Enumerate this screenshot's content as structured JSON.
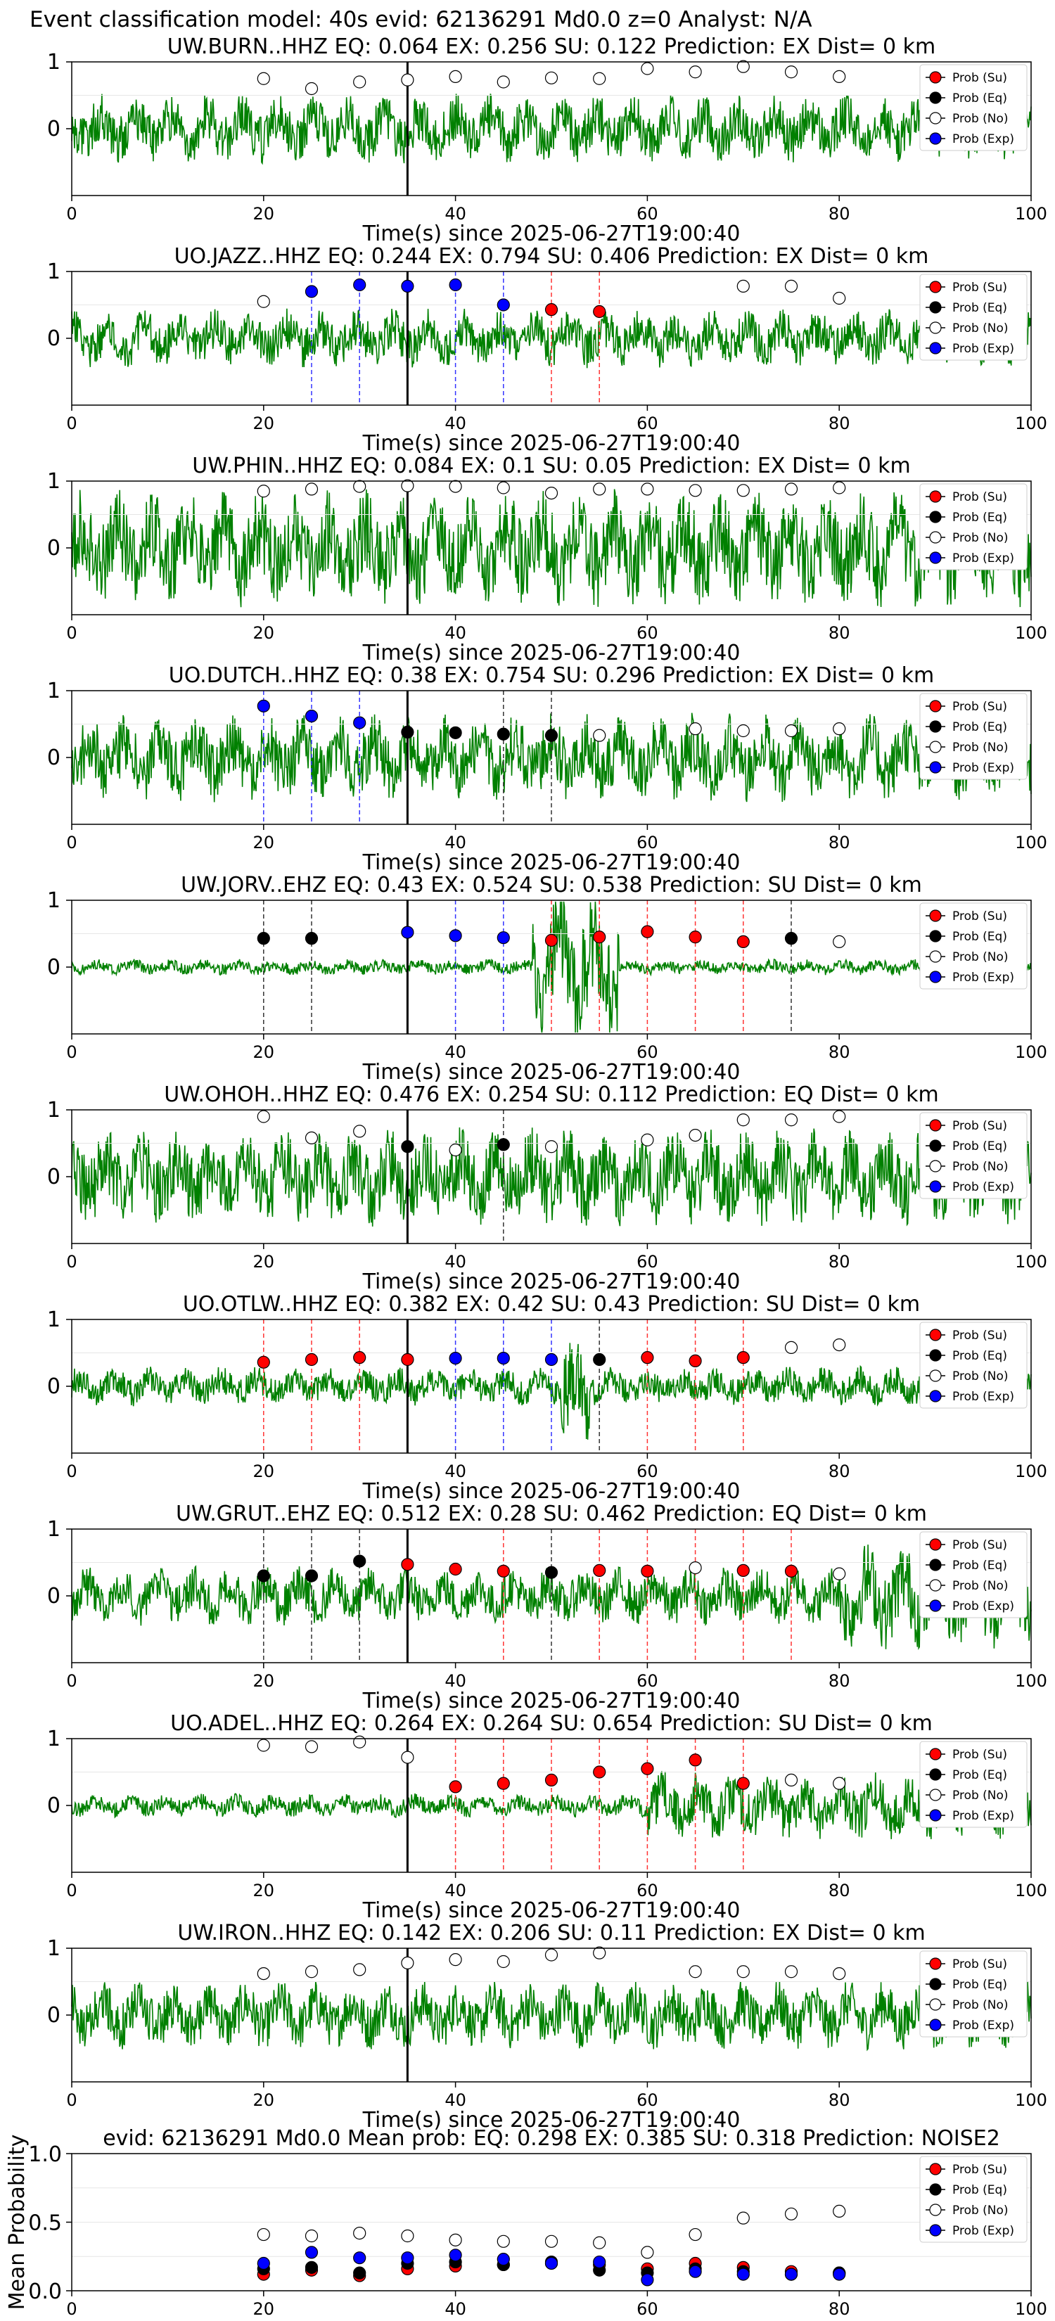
{
  "figure_title": "Event classification model: 40s evid: 62136291 Md0.0 z=0 Analyst: N/A",
  "legend_labels": [
    "Prob (Su)",
    "Prob (Eq)",
    "Prob (No)",
    "Prob (Exp)"
  ],
  "colors": {
    "su": "#ff0000",
    "eq": "#000000",
    "no": "#ffffff",
    "exp": "#0000ff",
    "waveform": "#008000"
  },
  "chart_data": [
    {
      "type": "line",
      "title": "UW.BURN..HHZ   EQ: 0.064  EX: 0.256  SU: 0.122   Prediction: EX    Dist= 0 km",
      "xlabel": "Time(s) since 2025-06-27T19:00:40",
      "xlim": [
        0,
        100
      ],
      "ylim": [
        -1,
        1
      ],
      "xticks": [
        "0",
        "20",
        "40",
        "60",
        "80",
        "100"
      ],
      "yticks": [
        "0",
        "1"
      ],
      "noise_amplitude": 0.35,
      "seed": 1,
      "points": [
        [
          20,
          "no",
          0.75
        ],
        [
          25,
          "no",
          0.6
        ],
        [
          30,
          "no",
          0.7
        ],
        [
          35,
          "no",
          0.73
        ],
        [
          40,
          "no",
          0.78
        ],
        [
          45,
          "no",
          0.7
        ],
        [
          50,
          "no",
          0.76
        ],
        [
          55,
          "no",
          0.75
        ],
        [
          60,
          "no",
          0.9
        ],
        [
          65,
          "no",
          0.85
        ],
        [
          70,
          "no",
          0.93
        ],
        [
          75,
          "no",
          0.85
        ],
        [
          80,
          "no",
          0.78
        ]
      ],
      "vlines": []
    },
    {
      "type": "line",
      "title": "UO.JAZZ..HHZ   EQ: 0.244  EX: 0.794  SU: 0.406   Prediction: EX    Dist= 0 km",
      "xlabel": "Time(s) since 2025-06-27T19:00:40",
      "xlim": [
        0,
        100
      ],
      "ylim": [
        -1,
        1
      ],
      "xticks": [
        "0",
        "20",
        "40",
        "60",
        "80",
        "100"
      ],
      "yticks": [
        "0",
        "1"
      ],
      "noise_amplitude": 0.3,
      "seed": 2,
      "points": [
        [
          20,
          "no",
          0.55
        ],
        [
          25,
          "exp",
          0.7
        ],
        [
          30,
          "exp",
          0.8
        ],
        [
          35,
          "exp",
          0.78
        ],
        [
          40,
          "exp",
          0.8
        ],
        [
          45,
          "exp",
          0.5
        ],
        [
          50,
          "su",
          0.43
        ],
        [
          55,
          "su",
          0.4
        ],
        [
          70,
          "no",
          0.78
        ],
        [
          75,
          "no",
          0.78
        ],
        [
          80,
          "no",
          0.6
        ]
      ],
      "vlines": [
        [
          25,
          "exp"
        ],
        [
          30,
          "exp"
        ],
        [
          40,
          "exp"
        ],
        [
          45,
          "exp"
        ],
        [
          50,
          "su"
        ],
        [
          55,
          "su"
        ]
      ]
    },
    {
      "type": "line",
      "title": "UW.PHIN..HHZ   EQ: 0.084  EX: 0.1  SU: 0.05   Prediction: EX    Dist= 0 km",
      "xlabel": "Time(s) since 2025-06-27T19:00:40",
      "xlim": [
        0,
        100
      ],
      "ylim": [
        -1,
        1
      ],
      "xticks": [
        "0",
        "20",
        "40",
        "60",
        "80",
        "100"
      ],
      "yticks": [
        "0",
        "1"
      ],
      "noise_amplitude": 0.6,
      "seed": 3,
      "points": [
        [
          20,
          "no",
          0.85
        ],
        [
          25,
          "no",
          0.88
        ],
        [
          30,
          "no",
          0.92
        ],
        [
          35,
          "no",
          0.93
        ],
        [
          40,
          "no",
          0.92
        ],
        [
          45,
          "no",
          0.9
        ],
        [
          50,
          "no",
          0.82
        ],
        [
          55,
          "no",
          0.88
        ],
        [
          60,
          "no",
          0.88
        ],
        [
          65,
          "no",
          0.86
        ],
        [
          70,
          "no",
          0.86
        ],
        [
          75,
          "no",
          0.88
        ],
        [
          80,
          "no",
          0.9
        ]
      ],
      "vlines": []
    },
    {
      "type": "line",
      "title": "UO.DUTCH..HHZ   EQ: 0.38  EX: 0.754  SU: 0.296   Prediction: EX    Dist= 0 km",
      "xlabel": "Time(s) since 2025-06-27T19:00:40",
      "xlim": [
        0,
        100
      ],
      "ylim": [
        -1,
        1
      ],
      "xticks": [
        "0",
        "20",
        "40",
        "60",
        "80",
        "100"
      ],
      "yticks": [
        "0",
        "1"
      ],
      "noise_amplitude": 0.45,
      "seed": 4,
      "points": [
        [
          20,
          "exp",
          0.77
        ],
        [
          25,
          "exp",
          0.62
        ],
        [
          30,
          "exp",
          0.52
        ],
        [
          35,
          "eq",
          0.38
        ],
        [
          40,
          "eq",
          0.37
        ],
        [
          45,
          "eq",
          0.35
        ],
        [
          50,
          "eq",
          0.33
        ],
        [
          55,
          "no",
          0.33
        ],
        [
          65,
          "no",
          0.43
        ],
        [
          70,
          "no",
          0.4
        ],
        [
          75,
          "no",
          0.4
        ],
        [
          80,
          "no",
          0.43
        ]
      ],
      "vlines": [
        [
          20,
          "exp"
        ],
        [
          25,
          "exp"
        ],
        [
          30,
          "exp"
        ],
        [
          45,
          "eq"
        ],
        [
          50,
          "eq"
        ]
      ]
    },
    {
      "type": "line",
      "title": "UW.JORV..EHZ   EQ: 0.43  EX: 0.524  SU: 0.538   Prediction: SU    Dist= 0 km",
      "xlabel": "Time(s) since 2025-06-27T19:00:40",
      "xlim": [
        0,
        100
      ],
      "ylim": [
        -1,
        1
      ],
      "xticks": [
        "0",
        "20",
        "40",
        "60",
        "80",
        "100"
      ],
      "yticks": [
        "0",
        "1"
      ],
      "noise_amplitude": 0.08,
      "seed": 5,
      "points": [
        [
          20,
          "eq",
          0.43
        ],
        [
          25,
          "eq",
          0.43
        ],
        [
          35,
          "exp",
          0.52
        ],
        [
          40,
          "exp",
          0.47
        ],
        [
          45,
          "exp",
          0.44
        ],
        [
          50,
          "su",
          0.4
        ],
        [
          55,
          "su",
          0.45
        ],
        [
          60,
          "su",
          0.53
        ],
        [
          65,
          "su",
          0.45
        ],
        [
          70,
          "su",
          0.38
        ],
        [
          75,
          "eq",
          0.43
        ],
        [
          80,
          "no",
          0.38
        ]
      ],
      "vlines": [
        [
          20,
          "eq"
        ],
        [
          25,
          "eq"
        ],
        [
          40,
          "exp"
        ],
        [
          45,
          "exp"
        ],
        [
          50,
          "su"
        ],
        [
          55,
          "su"
        ],
        [
          60,
          "su"
        ],
        [
          65,
          "su"
        ],
        [
          70,
          "su"
        ],
        [
          75,
          "eq"
        ]
      ]
    },
    {
      "type": "line",
      "title": "UW.OHOH..HHZ   EQ: 0.476  EX: 0.254  SU: 0.112   Prediction: EQ    Dist= 0 km",
      "xlabel": "Time(s) since 2025-06-27T19:00:40",
      "xlim": [
        0,
        100
      ],
      "ylim": [
        -1,
        1
      ],
      "xticks": [
        "0",
        "20",
        "40",
        "60",
        "80",
        "100"
      ],
      "yticks": [
        "0",
        "1"
      ],
      "noise_amplitude": 0.5,
      "seed": 6,
      "points": [
        [
          20,
          "no",
          0.9
        ],
        [
          25,
          "no",
          0.58
        ],
        [
          30,
          "no",
          0.68
        ],
        [
          35,
          "eq",
          0.45
        ],
        [
          40,
          "no",
          0.4
        ],
        [
          45,
          "eq",
          0.48
        ],
        [
          50,
          "no",
          0.45
        ],
        [
          60,
          "no",
          0.55
        ],
        [
          65,
          "no",
          0.62
        ],
        [
          70,
          "no",
          0.85
        ],
        [
          75,
          "no",
          0.85
        ],
        [
          80,
          "no",
          0.9
        ]
      ],
      "vlines": [
        [
          45,
          "eq"
        ]
      ]
    },
    {
      "type": "line",
      "title": "UO.OTLW..HHZ   EQ: 0.382  EX: 0.42  SU: 0.43   Prediction: SU    Dist= 0 km",
      "xlabel": "Time(s) since 2025-06-27T19:00:40",
      "xlim": [
        0,
        100
      ],
      "ylim": [
        -1,
        1
      ],
      "xticks": [
        "0",
        "20",
        "40",
        "60",
        "80",
        "100"
      ],
      "yticks": [
        "0",
        "1"
      ],
      "noise_amplitude": 0.2,
      "seed": 7,
      "points": [
        [
          20,
          "su",
          0.36
        ],
        [
          25,
          "su",
          0.4
        ],
        [
          30,
          "su",
          0.43
        ],
        [
          35,
          "su",
          0.4
        ],
        [
          40,
          "exp",
          0.42
        ],
        [
          45,
          "exp",
          0.42
        ],
        [
          50,
          "exp",
          0.4
        ],
        [
          55,
          "eq",
          0.4
        ],
        [
          60,
          "su",
          0.43
        ],
        [
          65,
          "su",
          0.38
        ],
        [
          70,
          "su",
          0.43
        ],
        [
          75,
          "no",
          0.58
        ],
        [
          80,
          "no",
          0.62
        ]
      ],
      "vlines": [
        [
          20,
          "su"
        ],
        [
          25,
          "su"
        ],
        [
          30,
          "su"
        ],
        [
          40,
          "exp"
        ],
        [
          45,
          "exp"
        ],
        [
          50,
          "exp"
        ],
        [
          55,
          "eq"
        ],
        [
          60,
          "su"
        ],
        [
          65,
          "su"
        ],
        [
          70,
          "su"
        ]
      ]
    },
    {
      "type": "line",
      "title": "UW.GRUT..EHZ   EQ: 0.512  EX: 0.28  SU: 0.462   Prediction: EQ    Dist= 0 km",
      "xlabel": "Time(s) since 2025-06-27T19:00:40",
      "xlim": [
        0,
        100
      ],
      "ylim": [
        -1,
        1
      ],
      "xticks": [
        "0",
        "20",
        "40",
        "60",
        "80",
        "100"
      ],
      "yticks": [
        "0",
        "1"
      ],
      "noise_amplitude": 0.3,
      "seed": 8,
      "points": [
        [
          20,
          "eq",
          0.3
        ],
        [
          25,
          "eq",
          0.3
        ],
        [
          30,
          "eq",
          0.52
        ],
        [
          35,
          "su",
          0.47
        ],
        [
          40,
          "su",
          0.4
        ],
        [
          45,
          "su",
          0.37
        ],
        [
          50,
          "eq",
          0.35
        ],
        [
          55,
          "su",
          0.38
        ],
        [
          60,
          "su",
          0.37
        ],
        [
          65,
          "no",
          0.42
        ],
        [
          70,
          "su",
          0.38
        ],
        [
          75,
          "su",
          0.37
        ],
        [
          80,
          "no",
          0.33
        ]
      ],
      "vlines": [
        [
          20,
          "eq"
        ],
        [
          25,
          "eq"
        ],
        [
          30,
          "eq"
        ],
        [
          45,
          "su"
        ],
        [
          50,
          "eq"
        ],
        [
          55,
          "su"
        ],
        [
          60,
          "su"
        ],
        [
          65,
          "su"
        ],
        [
          70,
          "su"
        ],
        [
          75,
          "su"
        ]
      ]
    },
    {
      "type": "line",
      "title": "UO.ADEL..HHZ   EQ: 0.264  EX: 0.264  SU: 0.654   Prediction: SU    Dist= 0 km",
      "xlabel": "Time(s) since 2025-06-27T19:00:40",
      "xlim": [
        0,
        100
      ],
      "ylim": [
        -1,
        1
      ],
      "xticks": [
        "0",
        "20",
        "40",
        "60",
        "80",
        "100"
      ],
      "yticks": [
        "0",
        "1"
      ],
      "noise_amplitude": 0.12,
      "seed": 9,
      "points": [
        [
          20,
          "no",
          0.9
        ],
        [
          25,
          "no",
          0.88
        ],
        [
          30,
          "no",
          0.95
        ],
        [
          35,
          "no",
          0.72
        ],
        [
          40,
          "su",
          0.28
        ],
        [
          45,
          "su",
          0.33
        ],
        [
          50,
          "su",
          0.38
        ],
        [
          55,
          "su",
          0.5
        ],
        [
          60,
          "su",
          0.55
        ],
        [
          65,
          "su",
          0.68
        ],
        [
          70,
          "su",
          0.33
        ],
        [
          75,
          "no",
          0.38
        ],
        [
          80,
          "no",
          0.33
        ]
      ],
      "vlines": [
        [
          40,
          "su"
        ],
        [
          45,
          "su"
        ],
        [
          50,
          "su"
        ],
        [
          55,
          "su"
        ],
        [
          60,
          "su"
        ],
        [
          65,
          "su"
        ],
        [
          70,
          "su"
        ]
      ]
    },
    {
      "type": "line",
      "title": "UW.IRON..HHZ   EQ: 0.142  EX: 0.206  SU: 0.11   Prediction: EX    Dist= 0 km",
      "xlabel": "Time(s) since 2025-06-27T19:00:40",
      "xlim": [
        0,
        100
      ],
      "ylim": [
        -1,
        1
      ],
      "xticks": [
        "0",
        "20",
        "40",
        "60",
        "80",
        "100"
      ],
      "yticks": [
        "0",
        "1"
      ],
      "noise_amplitude": 0.35,
      "seed": 10,
      "points": [
        [
          20,
          "no",
          0.62
        ],
        [
          25,
          "no",
          0.65
        ],
        [
          30,
          "no",
          0.68
        ],
        [
          35,
          "no",
          0.78
        ],
        [
          40,
          "no",
          0.83
        ],
        [
          45,
          "no",
          0.8
        ],
        [
          50,
          "no",
          0.9
        ],
        [
          55,
          "no",
          0.93
        ],
        [
          65,
          "no",
          0.65
        ],
        [
          70,
          "no",
          0.65
        ],
        [
          75,
          "no",
          0.65
        ],
        [
          80,
          "no",
          0.62
        ]
      ],
      "vlines": []
    },
    {
      "type": "scatter",
      "title": "evid: 62136291  Md0.0   Mean prob:   EQ: 0.298  EX: 0.385  SU: 0.318   Prediction: NOISE2",
      "xlabel": "",
      "ylabel": "Mean Probability",
      "xlim": [
        0,
        100
      ],
      "ylim": [
        0,
        1
      ],
      "xticks": [
        "0",
        "20",
        "40",
        "60",
        "80",
        "100"
      ],
      "yticks": [
        "0.0",
        "0.5",
        "1.0"
      ],
      "series": [
        {
          "name": "Prob (Su)",
          "key": "su",
          "x": [
            20,
            25,
            30,
            35,
            40,
            45,
            50,
            55,
            60,
            65,
            70,
            75,
            80
          ],
          "y": [
            0.12,
            0.15,
            0.11,
            0.16,
            0.18,
            0.19,
            0.2,
            0.19,
            0.16,
            0.2,
            0.17,
            0.14,
            0.13
          ]
        },
        {
          "name": "Prob (Eq)",
          "key": "eq",
          "x": [
            20,
            25,
            30,
            35,
            40,
            45,
            50,
            55,
            60,
            65,
            70,
            75,
            80
          ],
          "y": [
            0.16,
            0.17,
            0.13,
            0.2,
            0.21,
            0.19,
            0.21,
            0.15,
            0.13,
            0.16,
            0.14,
            0.12,
            0.13
          ]
        },
        {
          "name": "Prob (No)",
          "key": "no",
          "x": [
            20,
            25,
            30,
            35,
            40,
            45,
            50,
            55,
            60,
            65,
            70,
            75,
            80
          ],
          "y": [
            0.41,
            0.4,
            0.42,
            0.4,
            0.37,
            0.36,
            0.36,
            0.35,
            0.28,
            0.41,
            0.53,
            0.56,
            0.58
          ]
        },
        {
          "name": "Prob (Exp)",
          "key": "exp",
          "x": [
            20,
            25,
            30,
            35,
            40,
            45,
            50,
            55,
            60,
            65,
            70,
            75,
            80
          ],
          "y": [
            0.2,
            0.28,
            0.24,
            0.24,
            0.26,
            0.23,
            0.2,
            0.21,
            0.08,
            0.14,
            0.12,
            0.12,
            0.12
          ]
        }
      ]
    }
  ]
}
